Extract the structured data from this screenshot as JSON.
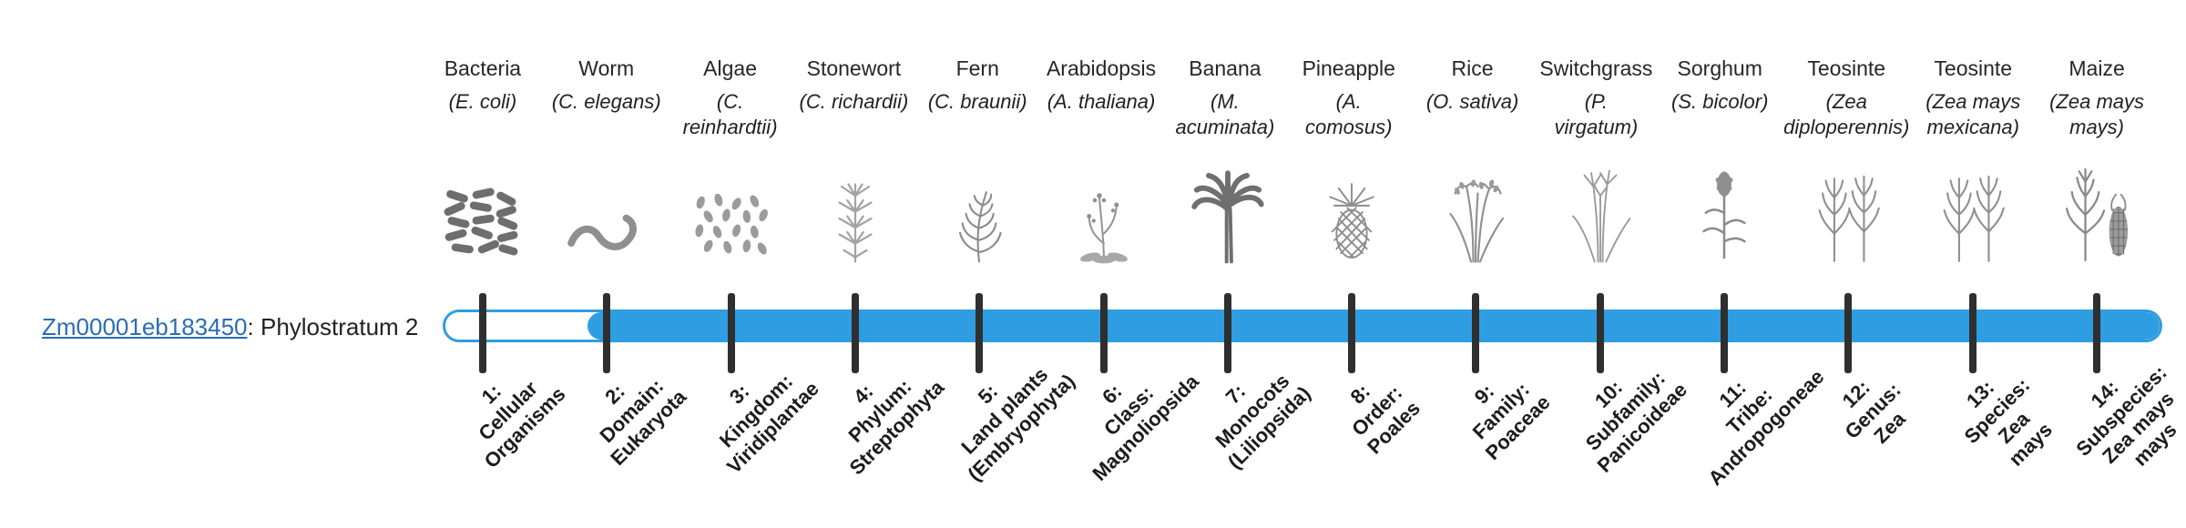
{
  "page": {
    "gene": {
      "link_text": "Zm00001eb183450",
      "suffix": ": Phylostratum 2"
    },
    "bar": {
      "origin_stratum": 2
    },
    "colors": {
      "bar_blue": "#2f9de2",
      "tick": "#2f2f2f",
      "link": "#2a6db5",
      "text": "#222222"
    }
  },
  "organisms": [
    {
      "stratum": 1,
      "common": "Bacteria",
      "sci": "(E. coli)",
      "icon": "bacteria-illustration",
      "label": "1:\nCellular\nOrganisms"
    },
    {
      "stratum": 2,
      "common": "Worm",
      "sci": "(C. elegans)",
      "icon": "worm-illustration",
      "label": "2:\nDomain:\nEukaryota"
    },
    {
      "stratum": 3,
      "common": "Algae",
      "sci": "(C.\nreinhardtii)",
      "icon": "algae-illustration",
      "label": "3:\nKingdom:\nViridiplantae"
    },
    {
      "stratum": 4,
      "common": "Stonewort",
      "sci": "(C. richardii)",
      "icon": "stonewort-illustration",
      "label": "4:\nPhylum:\nStreptophyta"
    },
    {
      "stratum": 5,
      "common": "Fern",
      "sci": "(C. braunii)",
      "icon": "fern-illustration",
      "label": "5:\nLand plants\n(Embryophyta)"
    },
    {
      "stratum": 6,
      "common": "Arabidopsis",
      "sci": "(A. thaliana)",
      "icon": "arabidopsis-illustration",
      "label": "6:\nClass:\nMagnoliopsida"
    },
    {
      "stratum": 7,
      "common": "Banana",
      "sci": "(M.\nacuminata)",
      "icon": "banana-illustration",
      "label": "7:\nMonocots\n(Liliopsida)"
    },
    {
      "stratum": 8,
      "common": "Pineapple",
      "sci": "(A.\ncomosus)",
      "icon": "pineapple-illustration",
      "label": "8:\nOrder:\nPoales"
    },
    {
      "stratum": 9,
      "common": "Rice",
      "sci": "(O. sativa)",
      "icon": "rice-illustration",
      "label": "9:\nFamily:\nPoaceae"
    },
    {
      "stratum": 10,
      "common": "Switchgrass",
      "sci": "(P.\nvirgatum)",
      "icon": "switchgrass-illustration",
      "label": "10:\nSubfamily:\nPanicoideae"
    },
    {
      "stratum": 11,
      "common": "Sorghum",
      "sci": "(S. bicolor)",
      "icon": "sorghum-illustration",
      "label": "11:\nTribe:\nAndropogoneae"
    },
    {
      "stratum": 12,
      "common": "Teosinte",
      "sci": "(Zea\ndiploperennis)",
      "icon": "teosinte-illustration",
      "label": "12:\nGenus:\nZea"
    },
    {
      "stratum": 13,
      "common": "Teosinte",
      "sci": "(Zea mays\nmexicana)",
      "icon": "teosinte-illustration",
      "label": "13:\nSpecies:\nZea\nmays"
    },
    {
      "stratum": 14,
      "common": "Maize",
      "sci": "(Zea mays\nmays)",
      "icon": "maize-illustration",
      "label": "14:\nSubspecies:\nZea mays\nmays"
    }
  ]
}
